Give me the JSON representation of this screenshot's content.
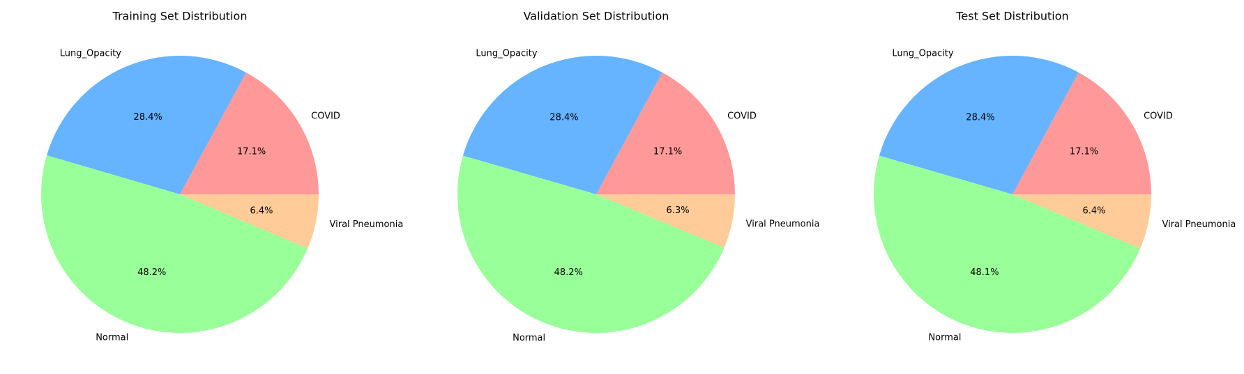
{
  "chart_data": [
    {
      "type": "pie",
      "title": "Training Set Distribution",
      "categories": [
        "COVID",
        "Lung_Opacity",
        "Normal",
        "Viral Pneumonia"
      ],
      "values": [
        17.1,
        28.4,
        48.2,
        6.4
      ],
      "value_labels": [
        "17.1%",
        "28.4%",
        "48.2%",
        "6.4%"
      ],
      "colors": [
        "#ff9999",
        "#66b3ff",
        "#99ff99",
        "#ffcc99"
      ],
      "start_angle_deg": 0,
      "direction": "counterclockwise"
    },
    {
      "type": "pie",
      "title": "Validation Set Distribution",
      "categories": [
        "COVID",
        "Lung_Opacity",
        "Normal",
        "Viral Pneumonia"
      ],
      "values": [
        17.1,
        28.4,
        48.2,
        6.3
      ],
      "value_labels": [
        "17.1%",
        "28.4%",
        "48.2%",
        "6.3%"
      ],
      "colors": [
        "#ff9999",
        "#66b3ff",
        "#99ff99",
        "#ffcc99"
      ],
      "start_angle_deg": 0,
      "direction": "counterclockwise"
    },
    {
      "type": "pie",
      "title": "Test Set Distribution",
      "categories": [
        "COVID",
        "Lung_Opacity",
        "Normal",
        "Viral Pneumonia"
      ],
      "values": [
        17.1,
        28.4,
        48.1,
        6.4
      ],
      "value_labels": [
        "17.1%",
        "28.4%",
        "48.1%",
        "6.4%"
      ],
      "colors": [
        "#ff9999",
        "#66b3ff",
        "#99ff99",
        "#ffcc99"
      ],
      "start_angle_deg": 0,
      "direction": "counterclockwise"
    }
  ]
}
